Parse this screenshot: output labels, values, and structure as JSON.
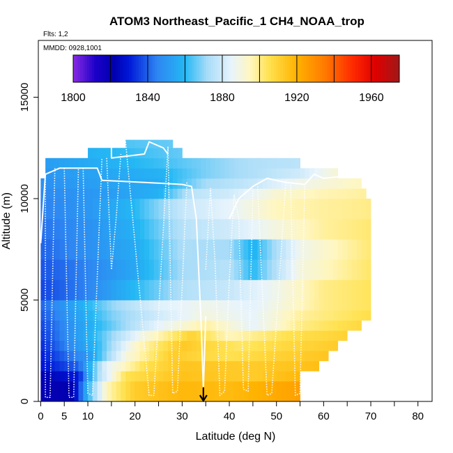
{
  "chart_data": {
    "type": "heatmap",
    "title": "ATOM3 Northeast_Pacific_1 CH4_NOAA_trop",
    "flights_note": "Flts: 1,2",
    "dates_note": "MMDD: 0928,1001",
    "xlabel": "Latitude (deg N)",
    "ylabel": "Altitude (m)",
    "xlim": [
      -0.5,
      83
    ],
    "ylim": [
      0,
      17800
    ],
    "x_major_ticks": [
      0,
      5,
      10,
      20,
      30,
      40,
      50,
      60,
      70,
      80
    ],
    "x_minor_ticks": [
      15,
      25,
      35,
      45,
      55,
      65,
      75,
      85
    ],
    "y_ticks": [
      0,
      5000,
      10000,
      15000
    ],
    "colorbar": {
      "min": 1800,
      "max": 1975,
      "tick_values": [
        1800,
        1840,
        1880,
        1920,
        1960
      ],
      "divisions": [
        1820,
        1840,
        1860,
        1880,
        1900,
        1920,
        1940,
        1960
      ],
      "stops": [
        {
          "v": 1800,
          "c": "#8a2be2"
        },
        {
          "v": 1812,
          "c": "#1c00c8"
        },
        {
          "v": 1822,
          "c": "#0000b0"
        },
        {
          "v": 1830,
          "c": "#0018d8"
        },
        {
          "v": 1845,
          "c": "#2e86f2"
        },
        {
          "v": 1860,
          "c": "#24b8f4"
        },
        {
          "v": 1872,
          "c": "#a8dcf8"
        },
        {
          "v": 1885,
          "c": "#e8f4fc"
        },
        {
          "v": 1895,
          "c": "#fff6c0"
        },
        {
          "v": 1905,
          "c": "#ffe250"
        },
        {
          "v": 1920,
          "c": "#ffb200"
        },
        {
          "v": 1935,
          "c": "#ff7a00"
        },
        {
          "v": 1950,
          "c": "#ff2a00"
        },
        {
          "v": 1962,
          "c": "#e00000"
        },
        {
          "v": 1975,
          "c": "#a01818"
        }
      ]
    },
    "levels": [
      {
        "y0": 0,
        "y1": 1000,
        "left": 0,
        "right": 55,
        "ramp": [
          [
            0,
            1820
          ],
          [
            7,
            1822
          ],
          [
            10,
            1860
          ],
          [
            14,
            1895
          ],
          [
            20,
            1912
          ],
          [
            30,
            1918
          ],
          [
            40,
            1917
          ],
          [
            50,
            1922
          ],
          [
            55,
            1925
          ]
        ]
      },
      {
        "y0": 1000,
        "y1": 1500,
        "left": 0,
        "right": 55,
        "ramp": [
          [
            0,
            1822
          ],
          [
            8,
            1830
          ],
          [
            12,
            1872
          ],
          [
            18,
            1905
          ],
          [
            30,
            1915
          ],
          [
            45,
            1912
          ],
          [
            55,
            1918
          ]
        ]
      },
      {
        "y0": 1500,
        "y1": 2000,
        "left": 0,
        "right": 59,
        "ramp": [
          [
            0,
            1828
          ],
          [
            8,
            1840
          ],
          [
            14,
            1885
          ],
          [
            22,
            1905
          ],
          [
            30,
            1914
          ],
          [
            45,
            1912
          ],
          [
            59,
            1916
          ]
        ]
      },
      {
        "y0": 2000,
        "y1": 2500,
        "left": 0,
        "right": 61,
        "ramp": [
          [
            0,
            1830
          ],
          [
            10,
            1850
          ],
          [
            18,
            1890
          ],
          [
            28,
            1912
          ],
          [
            40,
            1905
          ],
          [
            50,
            1910
          ],
          [
            61,
            1914
          ]
        ]
      },
      {
        "y0": 2500,
        "y1": 3000,
        "left": 0,
        "right": 63,
        "ramp": [
          [
            0,
            1832
          ],
          [
            12,
            1860
          ],
          [
            20,
            1893
          ],
          [
            30,
            1913
          ],
          [
            42,
            1903
          ],
          [
            52,
            1908
          ],
          [
            63,
            1912
          ]
        ]
      },
      {
        "y0": 3000,
        "y1": 3500,
        "left": 0,
        "right": 65,
        "ramp": [
          [
            0,
            1834
          ],
          [
            12,
            1862
          ],
          [
            22,
            1890
          ],
          [
            32,
            1910
          ],
          [
            40,
            1895
          ],
          [
            52,
            1905
          ],
          [
            65,
            1910
          ]
        ]
      },
      {
        "y0": 3500,
        "y1": 4000,
        "left": 0,
        "right": 68,
        "ramp": [
          [
            0,
            1836
          ],
          [
            15,
            1866
          ],
          [
            25,
            1885
          ],
          [
            35,
            1898
          ],
          [
            45,
            1885
          ],
          [
            55,
            1900
          ],
          [
            68,
            1908
          ]
        ]
      },
      {
        "y0": 4000,
        "y1": 4500,
        "left": 0,
        "right": 70,
        "ramp": [
          [
            0,
            1838
          ],
          [
            15,
            1868
          ],
          [
            25,
            1880
          ],
          [
            35,
            1890
          ],
          [
            45,
            1885
          ],
          [
            55,
            1898
          ],
          [
            70,
            1906
          ]
        ]
      },
      {
        "y0": 4500,
        "y1": 5000,
        "left": 0,
        "right": 70,
        "ramp": [
          [
            0,
            1840
          ],
          [
            15,
            1870
          ],
          [
            25,
            1883
          ],
          [
            35,
            1888
          ],
          [
            45,
            1884
          ],
          [
            60,
            1900
          ],
          [
            70,
            1904
          ]
        ]
      },
      {
        "y0": 5000,
        "y1": 6000,
        "left": 0,
        "right": 70,
        "ramp": [
          [
            0,
            1836
          ],
          [
            10,
            1845
          ],
          [
            20,
            1860
          ],
          [
            30,
            1874
          ],
          [
            40,
            1878
          ],
          [
            50,
            1888
          ],
          [
            60,
            1900
          ],
          [
            70,
            1904
          ]
        ]
      },
      {
        "y0": 6000,
        "y1": 7000,
        "left": 0,
        "right": 70,
        "ramp": [
          [
            0,
            1838
          ],
          [
            10,
            1845
          ],
          [
            20,
            1855
          ],
          [
            30,
            1872
          ],
          [
            40,
            1875
          ],
          [
            45,
            1860
          ],
          [
            55,
            1890
          ],
          [
            70,
            1903
          ]
        ]
      },
      {
        "y0": 7000,
        "y1": 8000,
        "left": 0,
        "right": 70,
        "ramp": [
          [
            0,
            1840
          ],
          [
            10,
            1848
          ],
          [
            20,
            1856
          ],
          [
            30,
            1873
          ],
          [
            40,
            1872
          ],
          [
            45,
            1858
          ],
          [
            55,
            1888
          ],
          [
            70,
            1902
          ]
        ]
      },
      {
        "y0": 8000,
        "y1": 9000,
        "left": 0,
        "right": 70,
        "ramp": [
          [
            0,
            1842
          ],
          [
            10,
            1848
          ],
          [
            20,
            1858
          ],
          [
            30,
            1875
          ],
          [
            40,
            1880
          ],
          [
            50,
            1890
          ],
          [
            60,
            1898
          ],
          [
            70,
            1902
          ]
        ]
      },
      {
        "y0": 9000,
        "y1": 10000,
        "left": 0,
        "right": 70,
        "ramp": [
          [
            0,
            1844
          ],
          [
            10,
            1850
          ],
          [
            20,
            1860
          ],
          [
            30,
            1878
          ],
          [
            40,
            1885
          ],
          [
            50,
            1895
          ],
          [
            60,
            1898
          ],
          [
            70,
            1900
          ]
        ]
      },
      {
        "y0": 10000,
        "y1": 10500,
        "left": 0,
        "right": 69,
        "ramp": [
          [
            0,
            1846
          ],
          [
            15,
            1852
          ],
          [
            25,
            1858
          ],
          [
            32,
            1876
          ],
          [
            40,
            1880
          ],
          [
            50,
            1892
          ],
          [
            60,
            1896
          ],
          [
            69,
            1898
          ]
        ]
      },
      {
        "y0": 10500,
        "y1": 11000,
        "left": 0,
        "right": 68,
        "ramp": [
          [
            0,
            1848
          ],
          [
            15,
            1854
          ],
          [
            25,
            1856
          ],
          [
            35,
            1872
          ],
          [
            45,
            1878
          ],
          [
            55,
            1888
          ],
          [
            68,
            1895
          ]
        ]
      },
      {
        "y0": 11000,
        "y1": 11500,
        "left": 1,
        "right": 63,
        "ramp": [
          [
            1,
            1850
          ],
          [
            15,
            1855
          ],
          [
            25,
            1858
          ],
          [
            35,
            1868
          ],
          [
            45,
            1874
          ],
          [
            55,
            1880
          ],
          [
            63,
            1892
          ]
        ]
      },
      {
        "y0": 11500,
        "y1": 12000,
        "left": 1,
        "right": 55,
        "ramp": [
          [
            1,
            1852
          ],
          [
            15,
            1858
          ],
          [
            25,
            1862
          ],
          [
            35,
            1868
          ],
          [
            45,
            1874
          ],
          [
            55,
            1876
          ]
        ]
      },
      {
        "y0": 12000,
        "y1": 12500,
        "left": 10,
        "right": 30,
        "ramp": [
          [
            10,
            1858
          ],
          [
            20,
            1862
          ],
          [
            30,
            1866
          ]
        ]
      },
      {
        "y0": 12500,
        "y1": 12900,
        "left": 18,
        "right": 28,
        "ramp": [
          [
            18,
            1864
          ],
          [
            28,
            1866
          ]
        ]
      }
    ],
    "flight_tracks": [
      {
        "style": "solid",
        "points": [
          [
            0,
            7800
          ],
          [
            1,
            11200
          ],
          [
            4,
            11500
          ],
          [
            12,
            11500
          ],
          [
            13,
            10900
          ],
          [
            22,
            10800
          ],
          [
            30,
            10700
          ],
          [
            32,
            10600
          ],
          [
            33,
            9000
          ],
          [
            34,
            4000
          ],
          [
            34.5,
            600
          ],
          [
            35,
            4200
          ]
        ]
      },
      {
        "style": "solid",
        "points": [
          [
            15,
            12800
          ],
          [
            15,
            12000
          ],
          [
            22,
            12200
          ],
          [
            23,
            12800
          ],
          [
            26,
            12500
          ],
          [
            27,
            12200
          ]
        ]
      },
      {
        "style": "solid",
        "points": [
          [
            40,
            9000
          ],
          [
            42,
            10000
          ],
          [
            45,
            10600
          ],
          [
            48,
            11000
          ],
          [
            52,
            10800
          ],
          [
            56,
            10700
          ],
          [
            58,
            11200
          ],
          [
            60,
            11000
          ],
          [
            64,
            11100
          ],
          [
            65,
            11300
          ],
          [
            70,
            11100
          ]
        ]
      },
      {
        "style": "dotted",
        "points": [
          [
            1,
            11200
          ],
          [
            1,
            200
          ],
          [
            2,
            200
          ],
          [
            3,
            11500
          ]
        ]
      },
      {
        "style": "dotted",
        "points": [
          [
            5,
            11500
          ],
          [
            6,
            200
          ],
          [
            7,
            200
          ],
          [
            8,
            11500
          ]
        ]
      },
      {
        "style": "dotted",
        "points": [
          [
            9,
            11500
          ],
          [
            10,
            400
          ],
          [
            11,
            300
          ],
          [
            13,
            12000
          ]
        ]
      },
      {
        "style": "dotted",
        "points": [
          [
            14,
            12000
          ],
          [
            15,
            6500
          ],
          [
            16,
            9000
          ],
          [
            17,
            12200
          ]
        ]
      },
      {
        "style": "dotted",
        "points": [
          [
            18,
            12800
          ],
          [
            23,
            300
          ],
          [
            24,
            300
          ],
          [
            27,
            12600
          ]
        ]
      },
      {
        "style": "dotted",
        "points": [
          [
            27,
            12500
          ],
          [
            28,
            400
          ],
          [
            29,
            500
          ],
          [
            31,
            10800
          ]
        ]
      },
      {
        "style": "dotted",
        "points": [
          [
            35,
            6500
          ],
          [
            36,
            10500
          ],
          [
            37,
            6800
          ],
          [
            38,
            300
          ],
          [
            39,
            500
          ],
          [
            40,
            6000
          ]
        ]
      },
      {
        "style": "dotted",
        "points": [
          [
            40,
            6000
          ],
          [
            41,
            10200
          ],
          [
            42,
            9000
          ],
          [
            43,
            600
          ],
          [
            44,
            500
          ],
          [
            45,
            10500
          ]
        ]
      },
      {
        "style": "dotted",
        "points": [
          [
            46,
            10600
          ],
          [
            48,
            300
          ],
          [
            49,
            400
          ],
          [
            52,
            10900
          ]
        ]
      },
      {
        "style": "dotted",
        "points": [
          [
            53,
            10800
          ],
          [
            54,
            300
          ],
          [
            55,
            400
          ],
          [
            56,
            10700
          ]
        ]
      }
    ],
    "arrow_marker": {
      "x": 34.5,
      "y_top": 700,
      "y_bottom": 0
    }
  }
}
